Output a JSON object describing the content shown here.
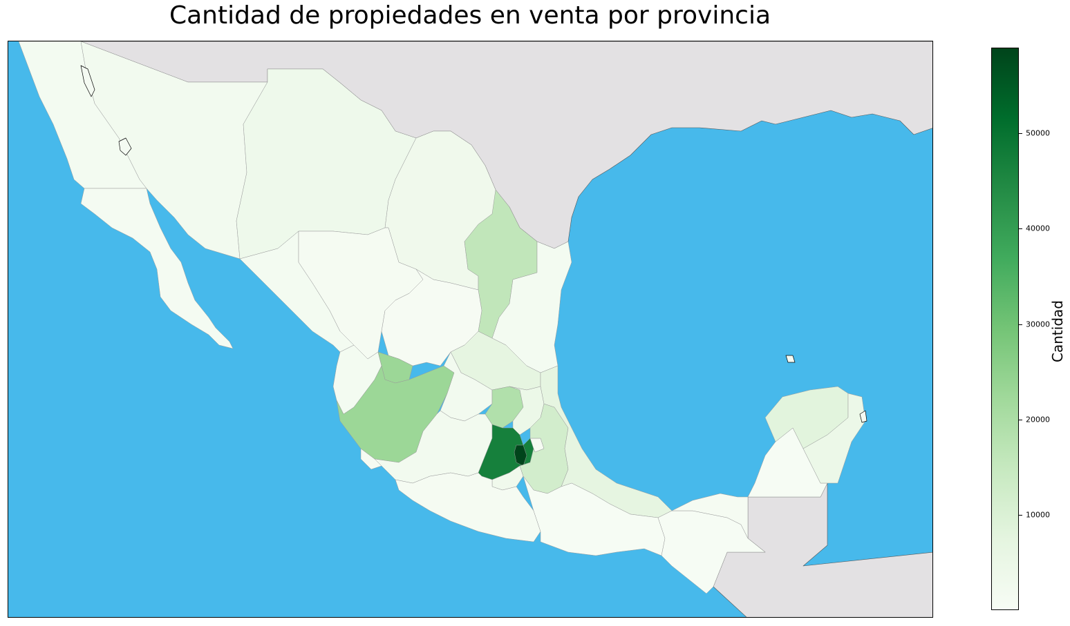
{
  "title": "Cantidad de propiedades en venta por provincia",
  "colorbar": {
    "label": "Cantidad",
    "min": 0,
    "max": 59000,
    "ticks": [
      "10000",
      "20000",
      "30000",
      "40000",
      "50000"
    ],
    "cmap": "Greens"
  },
  "colors": {
    "ocean": "#47b9eb",
    "foreign_land": "#e3e1e3",
    "border": "#000000"
  },
  "chart_data": {
    "type": "choropleth",
    "title": "Cantidad de propiedades en venta por provincia",
    "colorbar_label": "Cantidad",
    "value_range": [
      0,
      59000
    ],
    "regions": [
      {
        "id": "baja-california",
        "value": 1500
      },
      {
        "id": "baja-california-sur",
        "value": 1200
      },
      {
        "id": "sonora",
        "value": 2000
      },
      {
        "id": "chihuahua",
        "value": 3500
      },
      {
        "id": "coahuila",
        "value": 3000
      },
      {
        "id": "nuevo-leon",
        "value": 16000
      },
      {
        "id": "tamaulipas",
        "value": 1500
      },
      {
        "id": "sinaloa",
        "value": 1500
      },
      {
        "id": "durango",
        "value": 1000
      },
      {
        "id": "zacatecas",
        "value": 600
      },
      {
        "id": "san-luis-potosi",
        "value": 7000
      },
      {
        "id": "nayarit",
        "value": 1500
      },
      {
        "id": "aguascalientes",
        "value": 23000
      },
      {
        "id": "jalisco",
        "value": 23000
      },
      {
        "id": "guanajuato",
        "value": 2000
      },
      {
        "id": "queretaro",
        "value": 19000
      },
      {
        "id": "hidalgo",
        "value": 4500
      },
      {
        "id": "colima",
        "value": 1000
      },
      {
        "id": "michoacan",
        "value": 2000
      },
      {
        "id": "estado-de-mexico",
        "value": 47000
      },
      {
        "id": "ciudad-de-mexico",
        "value": 59000
      },
      {
        "id": "morelos",
        "value": 3000
      },
      {
        "id": "tlaxcala",
        "value": 1000
      },
      {
        "id": "puebla",
        "value": 12000
      },
      {
        "id": "veracruz",
        "value": 7000
      },
      {
        "id": "guerrero",
        "value": 1000
      },
      {
        "id": "oaxaca",
        "value": 500
      },
      {
        "id": "chiapas",
        "value": 300
      },
      {
        "id": "tabasco",
        "value": 1000
      },
      {
        "id": "campeche",
        "value": 500
      },
      {
        "id": "yucatan",
        "value": 8000
      },
      {
        "id": "quintana-roo",
        "value": 4500
      }
    ]
  }
}
